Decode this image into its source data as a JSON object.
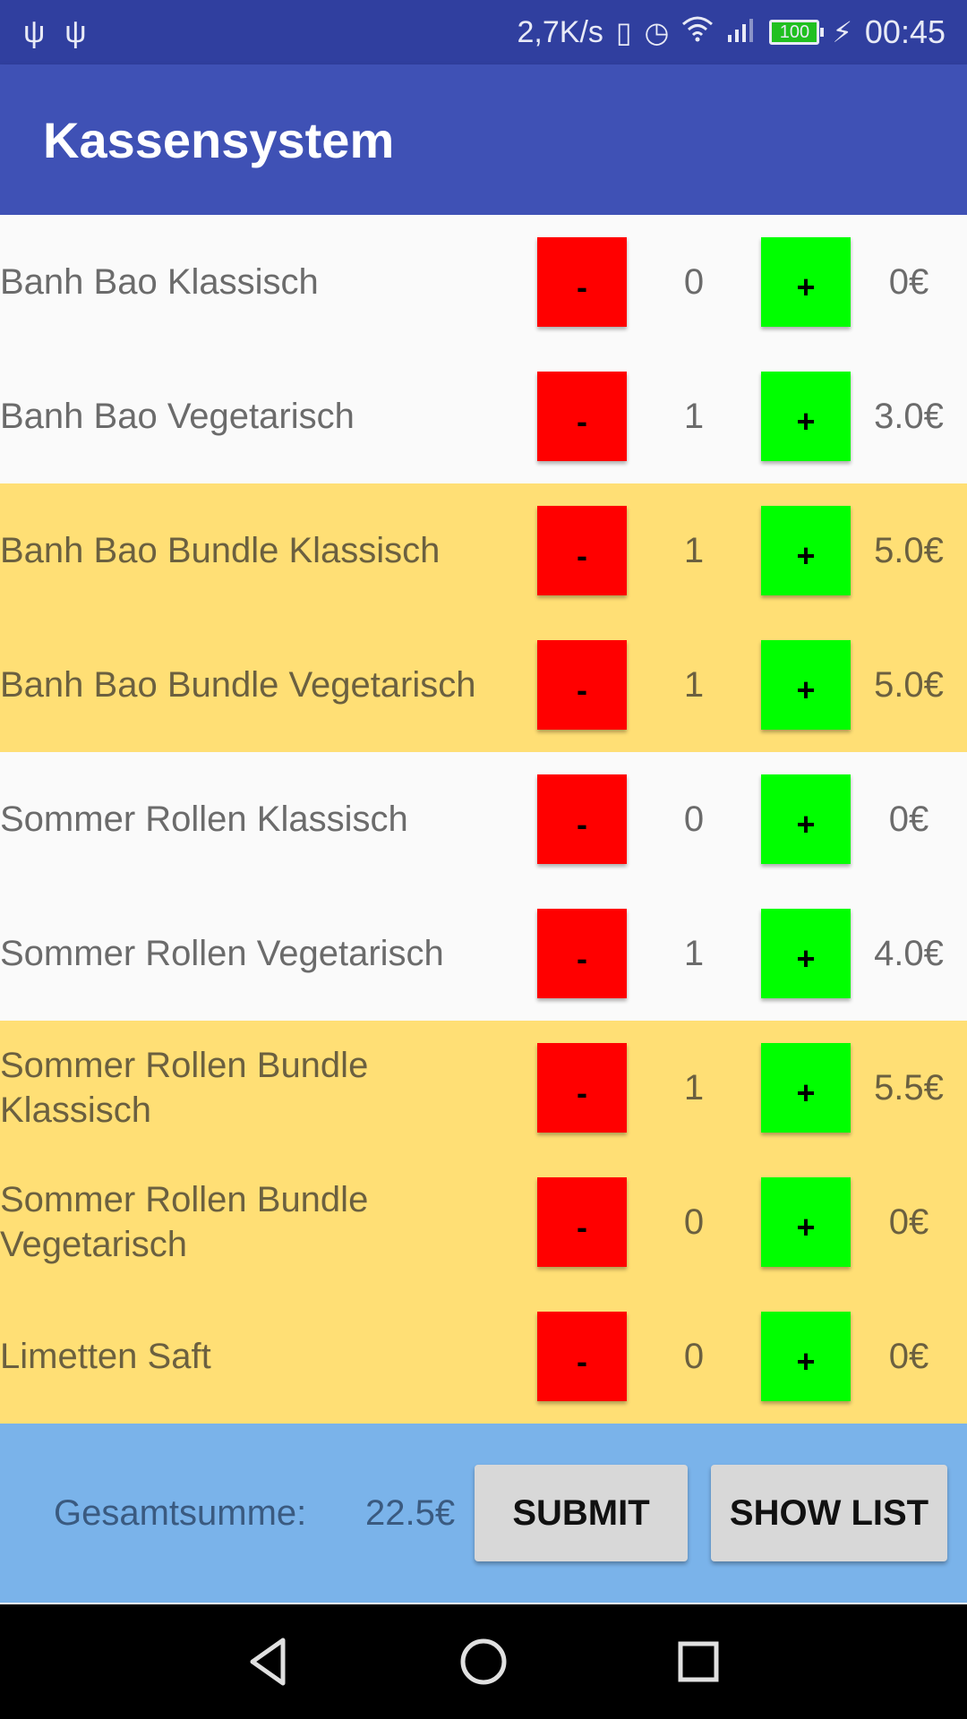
{
  "status_bar": {
    "speed": "2,7K/s",
    "battery": "100",
    "time": "00:45",
    "icons": [
      "usb-icon",
      "usb-icon",
      "vibrate-icon",
      "alarm-icon",
      "wifi-icon",
      "signal-icon",
      "battery-icon",
      "charging-icon"
    ]
  },
  "app_bar": {
    "title": "Kassensystem"
  },
  "items": [
    {
      "name": "Banh Bao Klassisch",
      "qty": "0",
      "price": "0€",
      "minus": "-",
      "plus": "+"
    },
    {
      "name": "Banh Bao Vegetarisch",
      "qty": "1",
      "price": "3.0€",
      "minus": "-",
      "plus": "+"
    },
    {
      "name": "Banh Bao Bundle Klassisch",
      "qty": "1",
      "price": "5.0€",
      "minus": "-",
      "plus": "+"
    },
    {
      "name": "Banh Bao Bundle Vegetarisch",
      "qty": "1",
      "price": "5.0€",
      "minus": "-",
      "plus": "+"
    },
    {
      "name": "Sommer Rollen Klassisch",
      "qty": "0",
      "price": "0€",
      "minus": "-",
      "plus": "+"
    },
    {
      "name": "Sommer Rollen Vegetarisch",
      "qty": "1",
      "price": "4.0€",
      "minus": "-",
      "plus": "+"
    },
    {
      "name": "Sommer Rollen Bundle Klassisch",
      "qty": "1",
      "price": "5.5€",
      "minus": "-",
      "plus": "+"
    },
    {
      "name": "Sommer Rollen Bundle Vegetarisch",
      "qty": "0",
      "price": "0€",
      "minus": "-",
      "plus": "+"
    },
    {
      "name": "Limetten Saft",
      "qty": "0",
      "price": "0€",
      "minus": "-",
      "plus": "+"
    }
  ],
  "footer": {
    "total_label": "Gesamtsumme:",
    "total_value": "22.5€",
    "submit_label": "SUBMIT",
    "show_list_label": "SHOW LIST"
  },
  "colors": {
    "status_bar": "#303f9f",
    "app_bar": "#3f51b5",
    "bundle_row": "#ffdf75",
    "minus_button": "#ff0000",
    "plus_button": "#00ff00",
    "footer": "#7ab3ea"
  }
}
